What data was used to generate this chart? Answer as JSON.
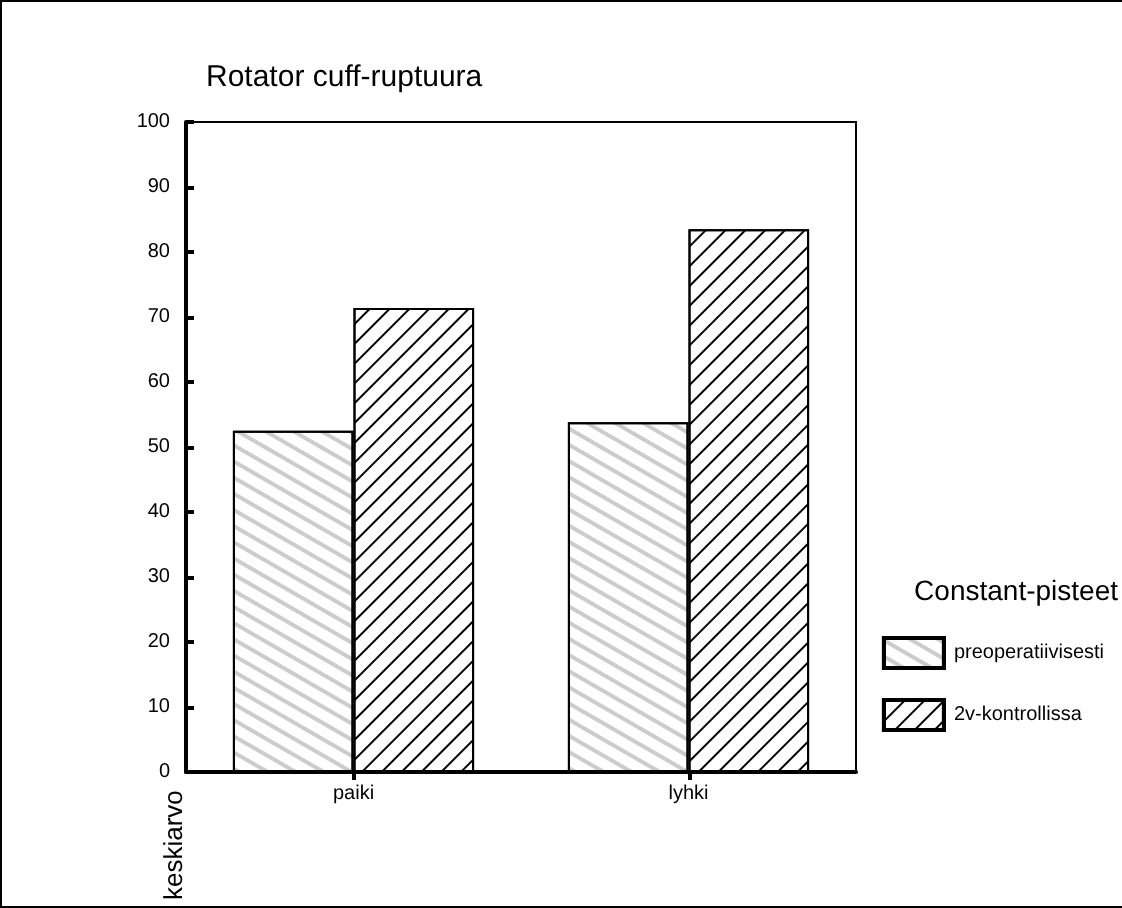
{
  "chart_data": {
    "type": "bar",
    "title": "Rotator cuff-ruptuura",
    "ylabel": "keskiarvo",
    "legend_title": "Constant-pisteet",
    "categories": [
      "paiki",
      "lyhki"
    ],
    "series": [
      {
        "name": "preoperatiivisesti",
        "color": "#ffffff",
        "values": [
          52.5,
          53.8
        ]
      },
      {
        "name": "2v-kontrollissa",
        "color": "#ffffff",
        "values": [
          71.4,
          83.5
        ]
      }
    ],
    "ylim": [
      0,
      100
    ],
    "yticks": [
      0,
      10,
      20,
      30,
      40,
      50,
      60,
      70,
      80,
      90,
      100
    ],
    "grid": false,
    "legend": "right"
  }
}
